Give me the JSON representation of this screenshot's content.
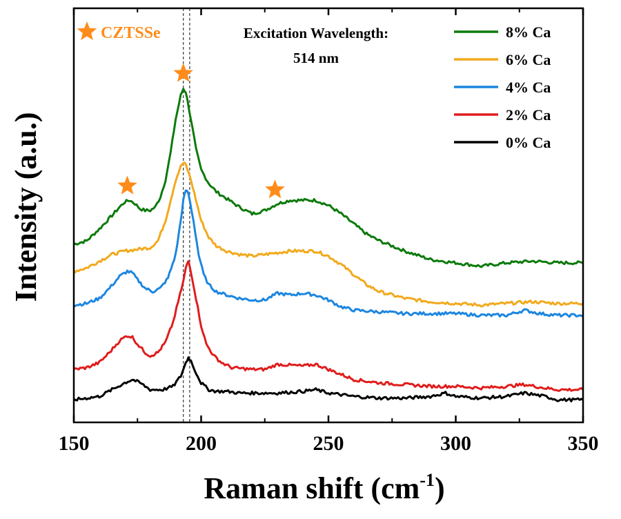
{
  "chart_data": {
    "type": "line",
    "xlabel": "Raman shift (cm",
    "xlabel_sup": "-1",
    "xlabel_close": ")",
    "ylabel": "Intensity (a.u.)",
    "xlim": [
      150,
      350
    ],
    "ylim": [
      0,
      100
    ],
    "x_ticks": [
      "150",
      "200",
      "250",
      "300",
      "350"
    ],
    "y_ticks_labeled": false,
    "annotation": {
      "line1": "Excitation Wavelength:",
      "line2": "514 nm"
    },
    "marker_legend": {
      "symbol": "star",
      "label": "CZTSSe",
      "color": "#ff8c1a"
    },
    "star_markers_x": [
      171,
      193,
      229
    ],
    "reference_lines_x": [
      193,
      195.5
    ],
    "legend_position": "top-right",
    "series": [
      {
        "name": "8% Ca",
        "color": "#0b7a0b",
        "points": [
          [
            150,
            49
          ],
          [
            155,
            50
          ],
          [
            160,
            53.5
          ],
          [
            165,
            57.5
          ],
          [
            168,
            60
          ],
          [
            170,
            61.5
          ],
          [
            172,
            62
          ],
          [
            174,
            61
          ],
          [
            176,
            59.5
          ],
          [
            178,
            59
          ],
          [
            180,
            59
          ],
          [
            182,
            60
          ],
          [
            184,
            63
          ],
          [
            186,
            68
          ],
          [
            188,
            76
          ],
          [
            190,
            86
          ],
          [
            192,
            93
          ],
          [
            193,
            95
          ],
          [
            194,
            94
          ],
          [
            196,
            86
          ],
          [
            198,
            77
          ],
          [
            200,
            71
          ],
          [
            203,
            67
          ],
          [
            206,
            64.5
          ],
          [
            210,
            62.5
          ],
          [
            215,
            60
          ],
          [
            220,
            58
          ],
          [
            225,
            59
          ],
          [
            230,
            61
          ],
          [
            235,
            62
          ],
          [
            240,
            62
          ],
          [
            245,
            62
          ],
          [
            250,
            60.5
          ],
          [
            255,
            58
          ],
          [
            260,
            55
          ],
          [
            265,
            52
          ],
          [
            270,
            50
          ],
          [
            280,
            47
          ],
          [
            290,
            44.5
          ],
          [
            300,
            43.5
          ],
          [
            310,
            42.5
          ],
          [
            320,
            43.5
          ],
          [
            330,
            44
          ],
          [
            340,
            43.5
          ],
          [
            350,
            43.5
          ]
        ]
      },
      {
        "name": "6% Ca",
        "color": "#f2a91c",
        "points": [
          [
            150,
            41
          ],
          [
            155,
            42
          ],
          [
            160,
            44
          ],
          [
            165,
            46
          ],
          [
            170,
            47
          ],
          [
            175,
            47.5
          ],
          [
            180,
            48
          ],
          [
            183,
            50
          ],
          [
            186,
            56
          ],
          [
            188,
            62
          ],
          [
            190,
            68
          ],
          [
            192,
            72
          ],
          [
            193,
            73
          ],
          [
            194,
            72.5
          ],
          [
            196,
            68
          ],
          [
            198,
            62
          ],
          [
            200,
            56
          ],
          [
            203,
            51
          ],
          [
            206,
            48.5
          ],
          [
            210,
            47
          ],
          [
            215,
            46
          ],
          [
            220,
            45.5
          ],
          [
            225,
            46
          ],
          [
            230,
            46.5
          ],
          [
            235,
            47
          ],
          [
            240,
            47
          ],
          [
            245,
            47
          ],
          [
            250,
            45.5
          ],
          [
            255,
            43
          ],
          [
            260,
            40
          ],
          [
            265,
            37
          ],
          [
            270,
            35
          ],
          [
            280,
            33
          ],
          [
            290,
            32
          ],
          [
            300,
            31.5
          ],
          [
            310,
            31
          ],
          [
            320,
            31.5
          ],
          [
            330,
            32
          ],
          [
            340,
            31.5
          ],
          [
            350,
            31.5
          ]
        ]
      },
      {
        "name": "4% Ca",
        "color": "#1c86e0",
        "points": [
          [
            150,
            31
          ],
          [
            155,
            31.5
          ],
          [
            160,
            33
          ],
          [
            164,
            36
          ],
          [
            168,
            39.5
          ],
          [
            171,
            41
          ],
          [
            173,
            40.5
          ],
          [
            175,
            38.5
          ],
          [
            178,
            36
          ],
          [
            181,
            35
          ],
          [
            184,
            36
          ],
          [
            187,
            39
          ],
          [
            190,
            46
          ],
          [
            192,
            56
          ],
          [
            193,
            62
          ],
          [
            194,
            65
          ],
          [
            195,
            64
          ],
          [
            197,
            56
          ],
          [
            199,
            46
          ],
          [
            201,
            40
          ],
          [
            203,
            37
          ],
          [
            206,
            35
          ],
          [
            210,
            34
          ],
          [
            215,
            33
          ],
          [
            220,
            32.5
          ],
          [
            225,
            32.5
          ],
          [
            230,
            34.5
          ],
          [
            235,
            34
          ],
          [
            240,
            34.5
          ],
          [
            245,
            34
          ],
          [
            250,
            32.5
          ],
          [
            255,
            30.5
          ],
          [
            260,
            29.5
          ],
          [
            270,
            29
          ],
          [
            280,
            28.5
          ],
          [
            290,
            28.5
          ],
          [
            300,
            28.5
          ],
          [
            310,
            28
          ],
          [
            320,
            28
          ],
          [
            327,
            29.5
          ],
          [
            333,
            28.5
          ],
          [
            340,
            28
          ],
          [
            350,
            28
          ]
        ]
      },
      {
        "name": "2% Ca",
        "color": "#e01c1c",
        "points": [
          [
            150,
            12
          ],
          [
            155,
            12.5
          ],
          [
            160,
            14
          ],
          [
            164,
            17
          ],
          [
            168,
            20.5
          ],
          [
            171,
            22
          ],
          [
            173,
            21.5
          ],
          [
            175,
            19.5
          ],
          [
            178,
            17
          ],
          [
            180,
            16
          ],
          [
            183,
            17
          ],
          [
            186,
            20
          ],
          [
            189,
            26
          ],
          [
            191,
            32
          ],
          [
            193,
            38
          ],
          [
            194,
            42
          ],
          [
            195,
            44
          ],
          [
            196,
            41
          ],
          [
            198,
            33
          ],
          [
            200,
            25
          ],
          [
            202,
            19.5
          ],
          [
            205,
            16
          ],
          [
            208,
            14
          ],
          [
            212,
            12.5
          ],
          [
            220,
            12
          ],
          [
            225,
            12
          ],
          [
            230,
            13.5
          ],
          [
            240,
            13
          ],
          [
            245,
            13.5
          ],
          [
            250,
            12
          ],
          [
            255,
            10.5
          ],
          [
            260,
            9
          ],
          [
            270,
            8
          ],
          [
            280,
            7.5
          ],
          [
            290,
            7
          ],
          [
            300,
            7
          ],
          [
            310,
            6.5
          ],
          [
            320,
            7
          ],
          [
            327,
            7.5
          ],
          [
            335,
            6.5
          ],
          [
            340,
            6
          ],
          [
            350,
            6
          ]
        ]
      },
      {
        "name": "0% Ca",
        "color": "#000000",
        "points": [
          [
            150,
            3
          ],
          [
            155,
            3.5
          ],
          [
            160,
            4
          ],
          [
            165,
            6
          ],
          [
            170,
            8
          ],
          [
            173,
            9
          ],
          [
            176,
            8
          ],
          [
            180,
            6
          ],
          [
            185,
            6
          ],
          [
            189,
            7
          ],
          [
            192,
            10
          ],
          [
            194,
            14
          ],
          [
            195,
            15.5
          ],
          [
            196,
            14.5
          ],
          [
            198,
            11
          ],
          [
            200,
            8
          ],
          [
            203,
            6
          ],
          [
            206,
            5.5
          ],
          [
            210,
            5.5
          ],
          [
            215,
            5
          ],
          [
            220,
            5
          ],
          [
            230,
            5
          ],
          [
            240,
            5.5
          ],
          [
            245,
            6
          ],
          [
            250,
            5
          ],
          [
            255,
            4.5
          ],
          [
            260,
            4
          ],
          [
            270,
            3.5
          ],
          [
            280,
            3.5
          ],
          [
            290,
            4
          ],
          [
            296,
            5
          ],
          [
            300,
            4
          ],
          [
            310,
            3.5
          ],
          [
            320,
            4
          ],
          [
            327,
            5
          ],
          [
            335,
            4
          ],
          [
            340,
            3
          ],
          [
            350,
            3
          ]
        ]
      }
    ]
  }
}
